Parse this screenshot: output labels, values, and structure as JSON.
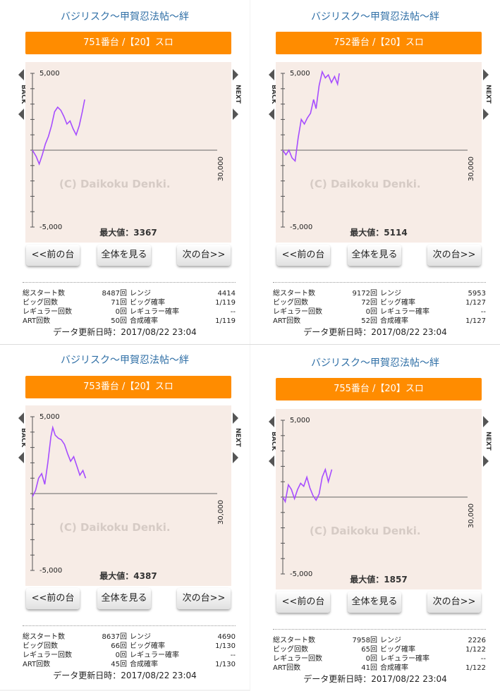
{
  "panels": [
    {
      "game_title": "バジリスク〜甲賀忍法帖〜絆",
      "machine_label": "751番台 /【20】スロ",
      "y_top_label": "5,000",
      "y_bottom_label": "-5,000",
      "x_end_label": "30,000",
      "watermark": "(C) Daikoku Denki.",
      "back_label": "BACK",
      "next_label": "NEXT",
      "max_label": "最大値：3367",
      "buttons": {
        "prev": "<<前の台",
        "all": "全体を見る",
        "next": "次の台>>"
      },
      "stats": {
        "total_start_label": "総スタート数",
        "total_start": "8487回",
        "range_label": "レンジ",
        "range": "4414",
        "big_count_label": "ビッグ回数",
        "big_count": "71回",
        "big_rate_label": "ビッグ確率",
        "big_rate": "1/119",
        "reg_count_label": "レギュラー回数",
        "reg_count": "0回",
        "reg_rate_label": "レギュラー確率",
        "reg_rate": "--",
        "art_count_label": "ART回数",
        "art_count": "50回",
        "combined_rate_label": "合成確率",
        "combined_rate": "1/119"
      },
      "updated": "データ更新日時：2017/08/22 23:04",
      "chart_data": {
        "type": "line",
        "title": "751番台 /【20】スロ",
        "xlim": [
          0,
          30000
        ],
        "ylim": [
          -5000,
          5000
        ],
        "x": [
          0,
          600,
          1100,
          1600,
          2100,
          2600,
          3100,
          3600,
          4100,
          4600,
          5100,
          5600,
          6100,
          6600,
          7100,
          7600,
          8100,
          8487
        ],
        "y": [
          0,
          -400,
          -900,
          -300,
          400,
          900,
          1600,
          2500,
          2800,
          2600,
          2200,
          1700,
          1900,
          1400,
          1000,
          1600,
          2500,
          3300
        ],
        "series": [
          {
            "color": "#a64dff",
            "values": [
              0,
              -400,
              -900,
              -300,
              400,
              900,
              1600,
              2500,
              2800,
              2600,
              2200,
              1700,
              1900,
              1400,
              1000,
              1600,
              2500,
              3300
            ]
          }
        ],
        "max_value": 3367
      }
    },
    {
      "game_title": "バジリスク〜甲賀忍法帖〜絆",
      "machine_label": "752番台 /【20】スロ",
      "y_top_label": "5,000",
      "y_bottom_label": "-5,000",
      "x_end_label": "30,000",
      "watermark": "(C) Daikoku Denki.",
      "back_label": "BACK",
      "next_label": "NEXT",
      "max_label": "最大値：5114",
      "buttons": {
        "prev": "<<前の台",
        "all": "全体を見る",
        "next": "次の台>>"
      },
      "stats": {
        "total_start_label": "総スタート数",
        "total_start": "9172回",
        "range_label": "レンジ",
        "range": "5953",
        "big_count_label": "ビッグ回数",
        "big_count": "72回",
        "big_rate_label": "ビッグ確率",
        "big_rate": "1/127",
        "reg_count_label": "レギュラー回数",
        "reg_count": "0回",
        "reg_rate_label": "レギュラー確率",
        "reg_rate": "--",
        "art_count_label": "ART回数",
        "art_count": "52回",
        "combined_rate_label": "合成確率",
        "combined_rate": "1/127"
      },
      "updated": "データ更新日時：2017/08/22 23:04",
      "chart_data": {
        "type": "line",
        "title": "752番台 /【20】スロ",
        "xlim": [
          0,
          30000
        ],
        "ylim": [
          -5000,
          5000
        ],
        "x": [
          0,
          500,
          1000,
          1500,
          2000,
          2500,
          3000,
          3500,
          4000,
          4500,
          5000,
          5400,
          5900,
          6400,
          6900,
          7400,
          7900,
          8400,
          8900,
          9172
        ],
        "y": [
          0,
          -300,
          0,
          -500,
          -700,
          800,
          2000,
          1700,
          2100,
          2400,
          3300,
          2700,
          4200,
          5100,
          4700,
          4900,
          4400,
          4800,
          4300,
          5000
        ],
        "series": [
          {
            "color": "#a64dff",
            "values": [
              0,
              -300,
              0,
              -500,
              -700,
              800,
              2000,
              1700,
              2100,
              2400,
              3300,
              2700,
              4200,
              5100,
              4700,
              4900,
              4400,
              4800,
              4300,
              5000
            ]
          }
        ],
        "max_value": 5114
      }
    },
    {
      "game_title": "バジリスク〜甲賀忍法帖〜絆",
      "machine_label": "753番台 /【20】スロ",
      "y_top_label": "5,000",
      "y_bottom_label": "-5,000",
      "x_end_label": "30,000",
      "watermark": "(C) Daikoku Denki.",
      "back_label": "BACK",
      "next_label": "NEXT",
      "max_label": "最大値：4387",
      "buttons": {
        "prev": "<<前の台",
        "all": "全体を見る",
        "next": "次の台>>"
      },
      "stats": {
        "total_start_label": "総スタート数",
        "total_start": "8637回",
        "range_label": "レンジ",
        "range": "4690",
        "big_count_label": "ビッグ回数",
        "big_count": "66回",
        "big_rate_label": "ビッグ確率",
        "big_rate": "1/130",
        "reg_count_label": "レギュラー回数",
        "reg_count": "0回",
        "reg_rate_label": "レギュラー確率",
        "reg_rate": "--",
        "art_count_label": "ART回数",
        "art_count": "45回",
        "combined_rate_label": "合成確率",
        "combined_rate": "1/130"
      },
      "updated": "データ更新日時：2017/08/22 23:04",
      "chart_data": {
        "type": "line",
        "title": "753番台 /【20】スロ",
        "xlim": [
          0,
          30000
        ],
        "ylim": [
          -5000,
          5000
        ],
        "x": [
          0,
          500,
          1000,
          1500,
          2000,
          2500,
          3000,
          3300,
          3700,
          4200,
          4700,
          5200,
          5700,
          6200,
          6700,
          7200,
          7700,
          8200,
          8637
        ],
        "y": [
          -200,
          200,
          1000,
          1300,
          600,
          2000,
          3700,
          4300,
          3800,
          3600,
          3500,
          3200,
          2600,
          2100,
          2400,
          1800,
          1200,
          1500,
          1000
        ],
        "series": [
          {
            "color": "#a64dff",
            "values": [
              -200,
              200,
              1000,
              1300,
              600,
              2000,
              3700,
              4300,
              3800,
              3600,
              3500,
              3200,
              2600,
              2100,
              2400,
              1800,
              1200,
              1500,
              1000
            ]
          }
        ],
        "max_value": 4387
      }
    },
    {
      "game_title": "バジリスク〜甲賀忍法帖〜絆",
      "machine_label": "755番台 /【20】スロ",
      "y_top_label": "5,000",
      "y_bottom_label": "-5,000",
      "x_end_label": "30,000",
      "watermark": "(C) Daikoku Denki.",
      "back_label": "BACK",
      "next_label": "NEXT",
      "max_label": "最大値：1857",
      "buttons": {
        "prev": "<<前の台",
        "all": "全体を見る",
        "next": "次の台>>"
      },
      "stats": {
        "total_start_label": "総スタート数",
        "total_start": "7958回",
        "range_label": "レンジ",
        "range": "2226",
        "big_count_label": "ビッグ回数",
        "big_count": "65回",
        "big_rate_label": "ビッグ確率",
        "big_rate": "1/122",
        "reg_count_label": "レギュラー回数",
        "reg_count": "0回",
        "reg_rate_label": "レギュラー確率",
        "reg_rate": "--",
        "art_count_label": "ART回数",
        "art_count": "41回",
        "combined_rate_label": "合成確率",
        "combined_rate": "1/122"
      },
      "updated": "データ更新日時：2017/08/22 23:04",
      "chart_data": {
        "type": "line",
        "title": "755番台 /【20】スロ",
        "xlim": [
          0,
          30000
        ],
        "ylim": [
          -5000,
          5000
        ],
        "x": [
          0,
          400,
          900,
          1400,
          1900,
          2400,
          2900,
          3400,
          3900,
          4400,
          4900,
          5400,
          5900,
          6400,
          6900,
          7400,
          7958
        ],
        "y": [
          0,
          -300,
          800,
          500,
          -100,
          500,
          900,
          700,
          1300,
          600,
          100,
          -200,
          200,
          1300,
          1800,
          1000,
          1800
        ],
        "series": [
          {
            "color": "#a64dff",
            "values": [
              0,
              -300,
              800,
              500,
              -100,
              500,
              900,
              700,
              1300,
              600,
              100,
              -200,
              200,
              1300,
              1800,
              1000,
              1800
            ]
          }
        ],
        "max_value": 1857
      }
    }
  ]
}
